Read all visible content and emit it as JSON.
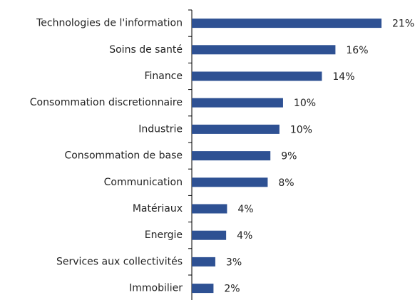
{
  "chart_data": {
    "type": "bar",
    "orientation": "horizontal",
    "categories": [
      "Technologies de l'information",
      "Soins de santé",
      "Finance",
      "Consommation discretionnaire",
      "Industrie",
      "Consommation de base",
      "Communication",
      "Matériaux",
      "Energie",
      "Services aux collectivités",
      "Immobilier"
    ],
    "values": [
      21,
      15.9,
      14.4,
      10.1,
      9.7,
      8.7,
      8.4,
      3.9,
      3.8,
      2.6,
      2.4
    ],
    "value_labels": [
      "21%",
      "16%",
      "14%",
      "10%",
      "10%",
      "9%",
      "8%",
      "4%",
      "4%",
      "3%",
      "2%"
    ],
    "color": "#2e5193"
  }
}
